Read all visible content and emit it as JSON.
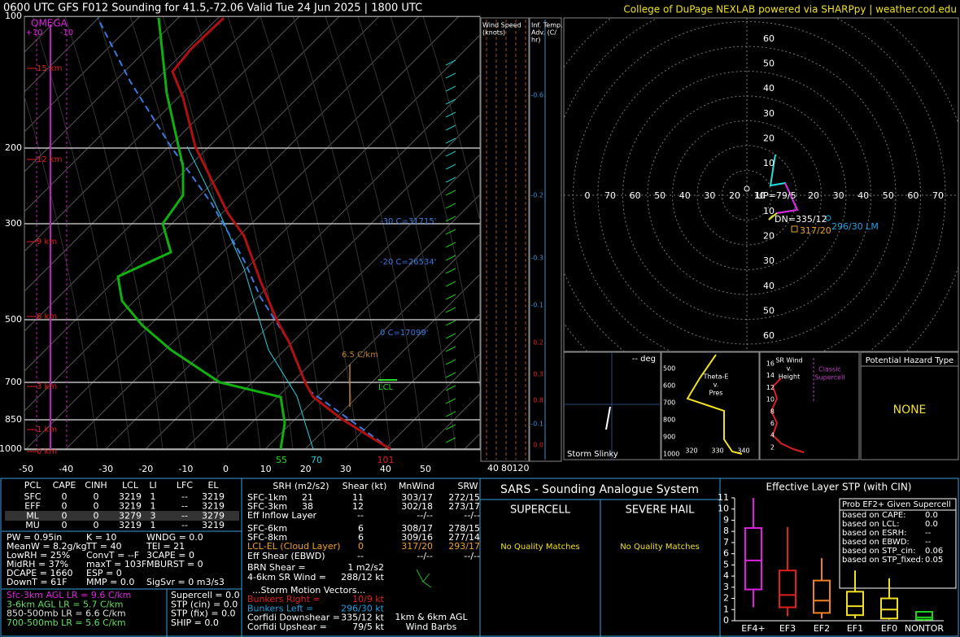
{
  "header": {
    "title": "0600 UTC GFS F012 Sounding for 41.5,-72.06 Valid  Tue 24 Jun 2025 | 1800 UTC",
    "credit": "College of DuPage NEXLAB powered via SHARPpy | weather.cod.edu"
  },
  "skewt": {
    "pressure_labels": [
      "100",
      "200",
      "300",
      "500",
      "700",
      "850",
      "1000"
    ],
    "temp_labels": [
      "-50",
      "-40",
      "-30",
      "-20",
      "-10",
      "0",
      "10",
      "20",
      "30",
      "40",
      "50"
    ],
    "height_labels": [
      "15 km",
      "12 km",
      "9 km",
      "6 km",
      "3 km",
      "1 km",
      "0 km"
    ],
    "omega": {
      "title": "OMEGA",
      "labels": [
        "+10",
        "-10"
      ]
    },
    "annotations": [
      "-30 C=31715'",
      "-20 C=26534'",
      "0 C=17099'",
      "6.5 C/km",
      "LCL",
      "55",
      "70",
      "101"
    ]
  },
  "wind_speed": {
    "title": [
      "Wind Speed",
      "(knots)"
    ],
    "labels": [
      "40",
      "80",
      "120"
    ]
  },
  "temp_adv": {
    "title": [
      "Inf. Temp.",
      "Adv. (C/",
      "hr)"
    ],
    "values": [
      "-0.6",
      "-0.2",
      "-0.3",
      "-0.1",
      "0.2",
      "0.3",
      "0.8",
      "-0.1",
      "0.0"
    ]
  },
  "hodograph": {
    "ring_labels_up": [
      "60",
      "50",
      "40",
      "30",
      "20",
      "10"
    ],
    "ring_labels_down": [
      "10",
      "20",
      "30",
      "40",
      "50",
      "60"
    ],
    "axis_left": [
      "0",
      "70",
      "60",
      "50",
      "40",
      "30",
      "20",
      "10"
    ],
    "axis_right": [
      "20",
      "30",
      "40",
      "50",
      "60",
      "70"
    ],
    "annotations": [
      "UP=79/5",
      "DN=335/12",
      "296/30 LM",
      "317/20"
    ]
  },
  "slinky": {
    "angle": "-- deg",
    "title": "Storm Slinky"
  },
  "theta_e": {
    "title": [
      "Theta-E",
      "v.",
      "Pres"
    ],
    "pressures": [
      "500",
      "600",
      "700",
      "800",
      "900",
      "1000"
    ],
    "temps": [
      "320",
      "330",
      "340"
    ]
  },
  "sr_wind": {
    "title": [
      "SR Wind",
      "v.",
      "Height"
    ],
    "note": [
      "Classic",
      "Supercell"
    ],
    "heights": [
      "16",
      "14",
      "12",
      "10",
      "8",
      "6",
      "4",
      "2"
    ]
  },
  "hazard": {
    "title": "Potential Hazard Type",
    "value": "NONE"
  },
  "parcels": {
    "header": [
      "PCL",
      "CAPE",
      "CINH",
      "LCL",
      "LI",
      "LFC",
      "EL"
    ],
    "rows": [
      [
        "SFC",
        "0",
        "0",
        "3219",
        "1",
        "--",
        "3219"
      ],
      [
        "EFF",
        "0",
        "0",
        "3219",
        "1",
        "--",
        "3219"
      ],
      [
        "ML",
        "0",
        "0",
        "3279",
        "3",
        "--",
        "3279"
      ],
      [
        "MU",
        "0",
        "0",
        "3219",
        "1",
        "--",
        "3219"
      ]
    ]
  },
  "indices": [
    [
      "PW = 0.95in",
      "K = 10",
      "WNDG = 0.0"
    ],
    [
      "MeanW = 8.2g/kg",
      "TT = 40",
      "TEI = 21"
    ],
    [
      "LowRH = 25%",
      "ConvT = --F",
      "3CAPE = 0"
    ],
    [
      "MidRH = 37%",
      "maxT = 103F",
      "MBURST = 0"
    ],
    [
      "DCAPE = 1660",
      "ESP = 0"
    ],
    [
      "DownT = 61F",
      "MMP = 0.0",
      "SigSvr = 0 m3/s3"
    ]
  ],
  "lapse_rates": [
    "Sfc-3km AGL LR = 9.6 C/km",
    "3-6km AGL LR = 5.7 C/km",
    "850-500mb LR = 6.6 C/km",
    "700-500mb LR = 5.6 C/km"
  ],
  "composites": [
    "Supercell = 0.0",
    "STP (cin) = 0.0",
    "STP (fix) = 0.0",
    "SHIP = 0.0"
  ],
  "kinematics": {
    "header": [
      "SRH (m2/s2)",
      "Shear (kt)",
      "MnWind",
      "SRW"
    ],
    "rows": [
      {
        "label": "SFC-1km",
        "srh": "21",
        "shear": "11",
        "mnwind": "303/17",
        "srw": "272/15"
      },
      {
        "label": "SFC-3km",
        "srh": "38",
        "shear": "12",
        "mnwind": "302/18",
        "srw": "273/17"
      },
      {
        "label": "Eff Inflow Layer",
        "srh": "--",
        "shear": "--",
        "mnwind": "--/--",
        "srw": "--/--"
      },
      {
        "label": "SFC-6km",
        "shear": "6",
        "mnwind": "308/17",
        "srw": "278/15"
      },
      {
        "label": "SFC-8km",
        "shear": "6",
        "mnwind": "309/16",
        "srw": "277/14"
      },
      {
        "label": "LCL-EL (Cloud Layer)",
        "shear": "0",
        "mnwind": "317/20",
        "srw": "293/17"
      },
      {
        "label": "Eff Shear (EBWD)",
        "shear": "--",
        "mnwind": "--/--",
        "srw": "--/--"
      }
    ],
    "extra": [
      [
        "BRN Shear = ",
        "1 m2/s2"
      ],
      [
        "4-6km SR Wind = ",
        "288/12 kt"
      ]
    ],
    "motion_title": "...Storm Motion Vectors...",
    "motion": [
      [
        "Bunkers Right = ",
        "10/9 kt"
      ],
      [
        "Bunkers Left = ",
        "296/30 kt"
      ],
      [
        "Corfidi Downshear = ",
        "335/12 kt"
      ],
      [
        "Corfidi Upshear = ",
        "79/5 kt"
      ]
    ],
    "barb_note": [
      "1km & 6km AGL",
      "Wind Barbs"
    ]
  },
  "sars": {
    "title": "SARS - Sounding Analogue System",
    "supercell": {
      "title": "SUPERCELL",
      "result": "No Quality Matches"
    },
    "hail": {
      "title": "SEVERE HAIL",
      "result": "No Quality Matches"
    }
  },
  "stp": {
    "title": "Effective Layer STP (with CIN)",
    "ylim": [
      0,
      11
    ],
    "yticks": [
      0,
      1,
      2,
      3,
      4,
      5,
      6,
      7,
      8,
      9,
      10,
      11
    ],
    "categories": [
      "EF4+",
      "EF3",
      "EF2",
      "EF1",
      "EF0",
      "NONTOR"
    ],
    "boxes": [
      {
        "min": 1.2,
        "q1": 2.8,
        "median": 5.4,
        "q3": 8.3,
        "max": 11,
        "color": "#e020e0"
      },
      {
        "min": 0.4,
        "q1": 1.2,
        "median": 2.3,
        "q3": 4.5,
        "max": 8.4,
        "color": "#e02020"
      },
      {
        "min": 0.2,
        "q1": 0.7,
        "median": 1.8,
        "q3": 3.6,
        "max": 5.6,
        "color": "#f08020"
      },
      {
        "min": 0.2,
        "q1": 0.5,
        "median": 1.3,
        "q3": 2.6,
        "max": 4.5,
        "color": "#f0e020"
      },
      {
        "min": 0.1,
        "q1": 0.2,
        "median": 1.0,
        "q3": 2.0,
        "max": 3.8,
        "color": "#f0e020"
      },
      {
        "min": 0,
        "q1": 0.1,
        "median": 0.3,
        "q3": 0.8,
        "max": 0.8,
        "color": "#20d020"
      }
    ],
    "legend": {
      "title": "Prob EF2+ Given Supercell",
      "rows": [
        [
          "based on CAPE:",
          "0.0"
        ],
        [
          "based on LCL:",
          "0.0"
        ],
        [
          "based on ESRH:",
          "--"
        ],
        [
          "based on EBWD:",
          "--"
        ],
        [
          "based on STP_cin:",
          "0.06"
        ],
        [
          "based on STP_fixed:",
          "0.05"
        ]
      ]
    }
  }
}
